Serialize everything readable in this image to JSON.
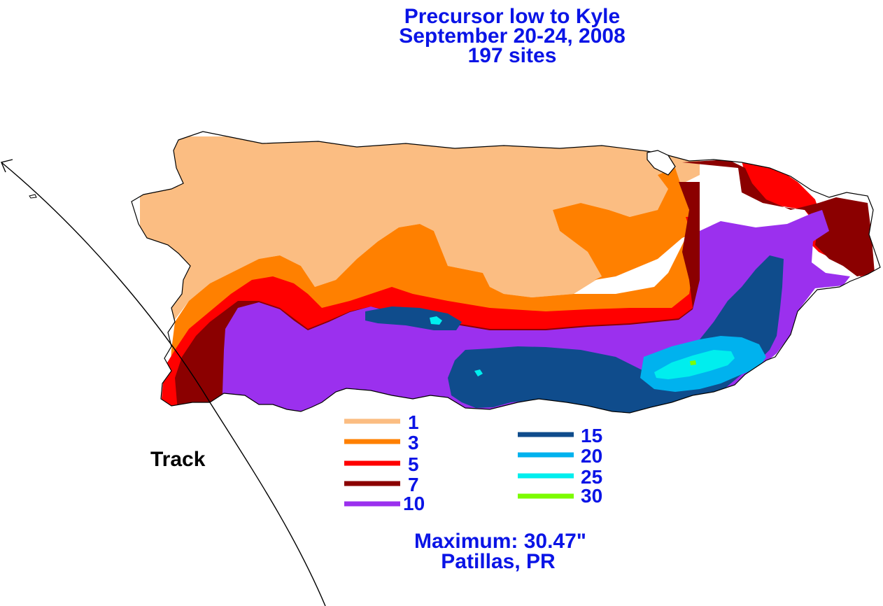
{
  "title": {
    "line1": "Precursor low to Kyle",
    "line2": "September 20-24, 2008",
    "line3": "197 sites"
  },
  "track_label": "Track",
  "maximum": {
    "line1": "Maximum:  30.47\"",
    "line2": "Patillas, PR"
  },
  "legend": [
    {
      "label": "1",
      "color": "#fbbd82"
    },
    {
      "label": "3",
      "color": "#ff8000"
    },
    {
      "label": "5",
      "color": "#ff0000"
    },
    {
      "label": "7",
      "color": "#8b0000"
    },
    {
      "label": "10",
      "color": "#9b30ee"
    },
    {
      "label": "15",
      "color": "#0f4c8c"
    },
    {
      "label": "20",
      "color": "#00b2ee"
    },
    {
      "label": "25",
      "color": "#00eeee"
    },
    {
      "label": "30",
      "color": "#7cfc00"
    }
  ],
  "colors": {
    "land": "#ffffff",
    "outline": "#000000",
    "text": "#0a14e6"
  }
}
